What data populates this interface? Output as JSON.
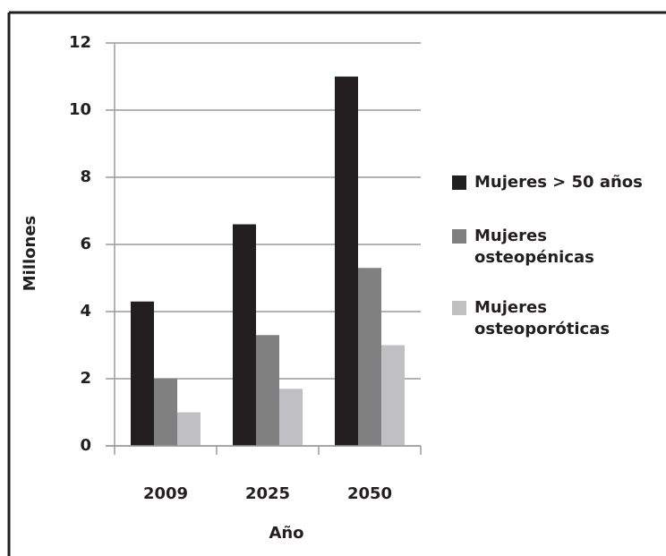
{
  "chart_data": {
    "type": "bar",
    "categories": [
      "2009",
      "2025",
      "2050"
    ],
    "series": [
      {
        "name": "Mujeres > 50 años",
        "color": "#231f20",
        "values": [
          4.3,
          6.6,
          11.0
        ]
      },
      {
        "name": "Mujeres osteopénicas",
        "color": "#808080",
        "values": [
          2.0,
          3.3,
          5.3
        ]
      },
      {
        "name": "Mujeres osteoporóticas",
        "color": "#c0c0c2",
        "values": [
          1.0,
          1.7,
          3.0
        ]
      }
    ],
    "xlabel": "Año",
    "ylabel": "Millones",
    "ylim": [
      0,
      12
    ],
    "yticks": [
      0,
      2,
      4,
      6,
      8,
      10,
      12
    ],
    "grid": true,
    "legend": "right"
  }
}
